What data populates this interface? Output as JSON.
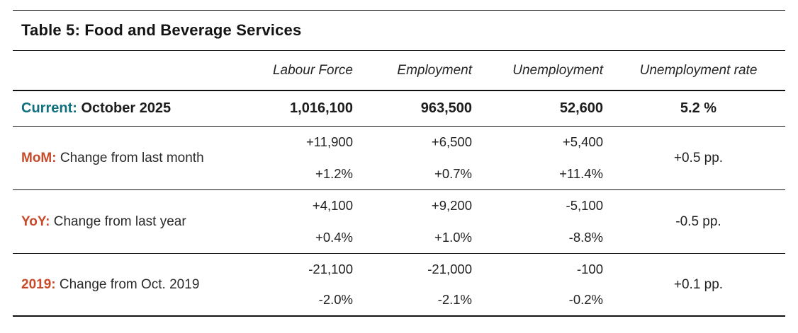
{
  "chart_data": {
    "type": "table",
    "title": "Table 5: Food and Beverage Services",
    "columns": [
      "Labour Force",
      "Employment",
      "Unemployment",
      "Unemployment rate"
    ],
    "current": {
      "prefix": "Current:",
      "period": "October 2025",
      "labour_force": "1,016,100",
      "employment": "963,500",
      "unemployment": "52,600",
      "unemployment_rate": "5.2 %"
    },
    "change_rows": [
      {
        "prefix": "MoM:",
        "label": "Change from last month",
        "labour_force": {
          "change": "+11,900",
          "percent": "+1.2%"
        },
        "employment": {
          "change": "+6,500",
          "percent": "+0.7%"
        },
        "unemployment": {
          "change": "+5,400",
          "percent": "+11.4%"
        },
        "unemployment_rate": "+0.5 pp."
      },
      {
        "prefix": "YoY:",
        "label": "Change from last year",
        "labour_force": {
          "change": "+4,100",
          "percent": "+0.4%"
        },
        "employment": {
          "change": "+9,200",
          "percent": "+1.0%"
        },
        "unemployment": {
          "change": "-5,100",
          "percent": "-8.8%"
        },
        "unemployment_rate": "-0.5 pp."
      },
      {
        "prefix": "2019:",
        "label": "Change from Oct. 2019",
        "labour_force": {
          "change": "-21,100",
          "percent": "-2.0%"
        },
        "employment": {
          "change": "-21,000",
          "percent": "-2.1%"
        },
        "unemployment": {
          "change": "-100",
          "percent": "-0.2%"
        },
        "unemployment_rate": "+0.1 pp."
      }
    ]
  },
  "colors": {
    "current_accent": "#11707f",
    "change_accent": "#c74a2b",
    "line": "#111111"
  }
}
